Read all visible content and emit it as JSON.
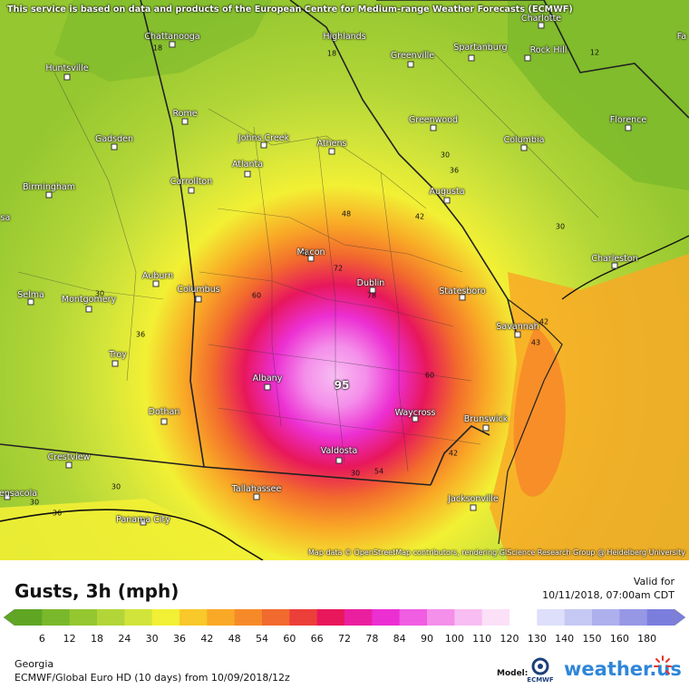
{
  "notice": "This service is based on data and products of the European Centre for Medium-range Weather Forecasts (ECMWF)",
  "attribution": "Map data © OpenStreetMap contributors, rendering GIScience Research Group @ Heidelberg University",
  "cities": [
    "Charlotte",
    "Chattanooga",
    "Highlands",
    "Spartanburg",
    "Rock Hill",
    "Huntsville",
    "Greenville",
    "Rome",
    "Greenwood",
    "Florence",
    "Gadsden",
    "Johns Creek",
    "Athens",
    "Columbia",
    "Atlanta",
    "Birmingham",
    "Carrollton",
    "Augusta",
    "Macon",
    "Charleston",
    "Auburn",
    "Dublin",
    "Statesboro",
    "Selma",
    "Montgomery",
    "Columbus",
    "Savannah",
    "Troy",
    "Albany",
    "Dothan",
    "Waycross",
    "Brunswick",
    "Valdosta",
    "Crestview",
    "Tallahassee",
    "Jacksonville",
    "Panama City",
    "ensacola",
    "Fa",
    "sa"
  ],
  "contour_labels": [
    "18",
    "12",
    "18",
    "30",
    "36",
    "48",
    "42",
    "30",
    "42",
    "72",
    "78",
    "60",
    "36",
    "30",
    "60",
    "95",
    "42",
    "43",
    "30",
    "54",
    "42",
    "30",
    "36",
    "30"
  ],
  "peak_value": "95",
  "legend": {
    "title": "Gusts, 3h (mph)",
    "valid_label": "Valid for",
    "valid_time": "10/11/2018, 07:00am CDT",
    "ticks": [
      "6",
      "12",
      "18",
      "24",
      "30",
      "36",
      "42",
      "48",
      "54",
      "60",
      "66",
      "72",
      "78",
      "84",
      "90",
      "100",
      "110",
      "120",
      "130",
      "140",
      "150",
      "160",
      "180"
    ],
    "colors": [
      "#5fa623",
      "#7ab82b",
      "#95c730",
      "#b2d638",
      "#d1e43a",
      "#f2f034",
      "#f9c82b",
      "#f9a926",
      "#f78a28",
      "#f26a2d",
      "#ec3f3a",
      "#e8175c",
      "#ea1fa0",
      "#ec2fd2",
      "#f05de2",
      "#f48fea",
      "#f8bdf2",
      "#fbe0f8",
      "#ffffff",
      "#dedffa",
      "#c6c8f4",
      "#aeb0ee",
      "#9698e6",
      "#7c7ede"
    ],
    "region": "Georgia",
    "model": "ECMWF/Global Euro HD (10 days) from 10/09/2018/12z",
    "model_label": "Model:",
    "brand": "weather.us",
    "model_logo_text": "ECMWF"
  }
}
